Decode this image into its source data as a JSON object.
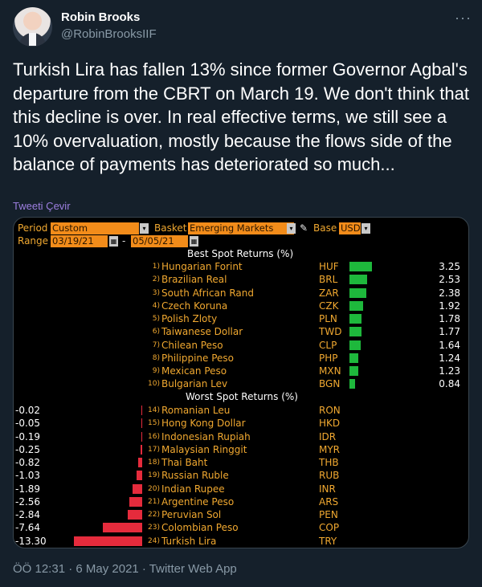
{
  "tweet": {
    "author_name": "Robin Brooks",
    "author_handle": "@RobinBrooksIIF",
    "more_icon": "···",
    "text": "Turkish Lira has fallen 13% since former Governor Agbal's departure from the CBRT on March 19. We don't think that this decline is over. In real effective terms, we still see a 10% overvaluation, mostly because the flows side of the balance of payments has deteriorated so much...",
    "translate_label": "Tweeti Çevir",
    "timestamp": "ÖÖ 12:31 · 6 May 2021 · Twitter Web App"
  },
  "terminal": {
    "period_label": "Period",
    "period_value": "Custom",
    "basket_label": "Basket",
    "basket_value": "Emerging Markets",
    "base_label": "Base",
    "base_value": "USD",
    "range_label": "Range",
    "range_start": "03/19/21",
    "range_end": "05/05/21",
    "range_sep": "-",
    "best_title": "Best Spot Returns (%)",
    "worst_title": "Worst Spot Returns (%)"
  },
  "chart_data": {
    "type": "bar",
    "title": "Best Spot Returns (%)",
    "best": [
      {
        "rank": "1)",
        "name": "Hungarian Forint",
        "code": "HUF",
        "value": 3.25
      },
      {
        "rank": "2)",
        "name": "Brazilian Real",
        "code": "BRL",
        "value": 2.53
      },
      {
        "rank": "3)",
        "name": "South African Rand",
        "code": "ZAR",
        "value": 2.38
      },
      {
        "rank": "4)",
        "name": "Czech Koruna",
        "code": "CZK",
        "value": 1.92
      },
      {
        "rank": "5)",
        "name": "Polish Zloty",
        "code": "PLN",
        "value": 1.78
      },
      {
        "rank": "6)",
        "name": "Taiwanese Dollar",
        "code": "TWD",
        "value": 1.77
      },
      {
        "rank": "7)",
        "name": "Chilean Peso",
        "code": "CLP",
        "value": 1.64
      },
      {
        "rank": "8)",
        "name": "Philippine Peso",
        "code": "PHP",
        "value": 1.24
      },
      {
        "rank": "9)",
        "name": "Mexican Peso",
        "code": "MXN",
        "value": 1.23
      },
      {
        "rank": "10)",
        "name": "Bulgarian Lev",
        "code": "BGN",
        "value": 0.84
      }
    ],
    "worst": [
      {
        "rank": "14)",
        "name": "Romanian Leu",
        "code": "RON",
        "value": -0.02
      },
      {
        "rank": "15)",
        "name": "Hong Kong Dollar",
        "code": "HKD",
        "value": -0.05
      },
      {
        "rank": "16)",
        "name": "Indonesian Rupiah",
        "code": "IDR",
        "value": -0.19
      },
      {
        "rank": "17)",
        "name": "Malaysian Ringgit",
        "code": "MYR",
        "value": -0.25
      },
      {
        "rank": "18)",
        "name": "Thai Baht",
        "code": "THB",
        "value": -0.82
      },
      {
        "rank": "19)",
        "name": "Russian Ruble",
        "code": "RUB",
        "value": -1.03
      },
      {
        "rank": "20)",
        "name": "Indian Rupee",
        "code": "INR",
        "value": -1.89
      },
      {
        "rank": "21)",
        "name": "Argentine Peso",
        "code": "ARS",
        "value": -2.56
      },
      {
        "rank": "22)",
        "name": "Peruvian Sol",
        "code": "PEN",
        "value": -2.84
      },
      {
        "rank": "23)",
        "name": "Colombian Peso",
        "code": "COP",
        "value": -7.64
      },
      {
        "rank": "24)",
        "name": "Turkish Lira",
        "code": "TRY",
        "value": -13.3
      }
    ],
    "colors": {
      "positive": "#1eb83c",
      "negative": "#e52b3c"
    }
  }
}
